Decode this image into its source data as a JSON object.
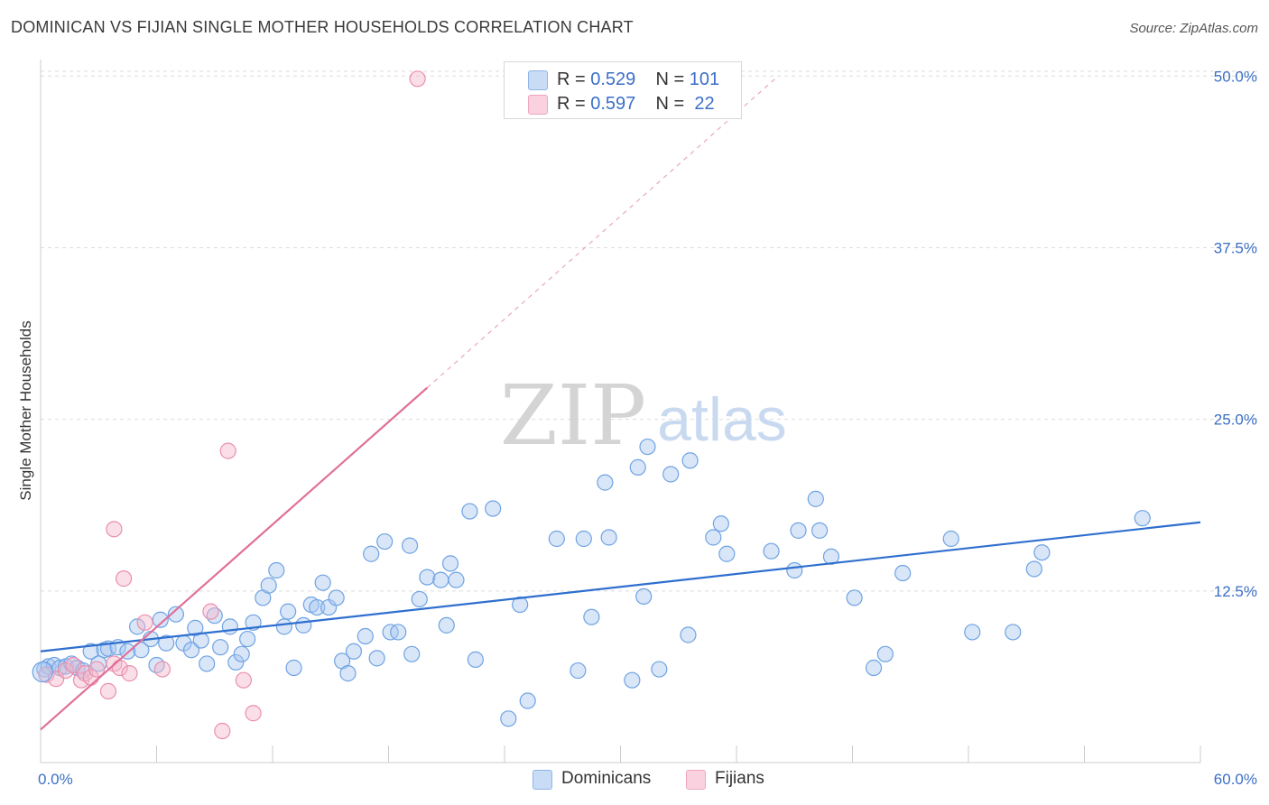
{
  "title": "DOMINICAN VS FIJIAN SINGLE MOTHER HOUSEHOLDS CORRELATION CHART",
  "source": "Source: ZipAtlas.com",
  "watermark": {
    "zip": "ZIP",
    "atlas": "atlas"
  },
  "legend": {
    "rows": [
      {
        "r_label": "R = ",
        "r_value": "0.529",
        "n_label": "N = ",
        "n_value": "101",
        "color": "#a9c8f0"
      },
      {
        "r_label": "R = ",
        "r_value": "0.597",
        "n_label": "N = ",
        "n_value": " 22",
        "color": "#f5b8cc"
      }
    ]
  },
  "bottom_legend": [
    {
      "label": "Dominicans",
      "color": "#a9c8f0"
    },
    {
      "label": "Fijians",
      "color": "#f5b8cc"
    }
  ],
  "chart_data": {
    "type": "scatter",
    "title": "DOMINICAN VS FIJIAN SINGLE MOTHER HOUSEHOLDS CORRELATION CHART",
    "xlabel": "",
    "ylabel": "Single Mother Households",
    "xlim": [
      0,
      60
    ],
    "ylim": [
      0,
      51.2
    ],
    "x_tick_labels": [
      "0.0%",
      "60.0%"
    ],
    "y_ticks": [
      12.5,
      25.0,
      37.5,
      50.0
    ],
    "y_tick_labels": [
      "12.5%",
      "25.0%",
      "37.5%",
      "50.0%"
    ],
    "grid": true,
    "legend_position": "top-center",
    "series": [
      {
        "name": "Dominicans",
        "color": "#6fa3e3",
        "fill": "rgba(169,200,240,0.45)",
        "trend": {
          "x0": 0,
          "y0": 8.1,
          "x1": 60,
          "y1": 17.5,
          "color": "#2f6fcf"
        },
        "points": [
          [
            0.2,
            6.8
          ],
          [
            0.4,
            7.0
          ],
          [
            0.7,
            7.1
          ],
          [
            1.0,
            6.9
          ],
          [
            1.3,
            7.0
          ],
          [
            1.6,
            7.2
          ],
          [
            1.9,
            6.9
          ],
          [
            2.2,
            6.7
          ],
          [
            2.6,
            8.1
          ],
          [
            3.0,
            7.2
          ],
          [
            3.3,
            8.2
          ],
          [
            3.5,
            8.3
          ],
          [
            4.0,
            8.4
          ],
          [
            4.5,
            8.1
          ],
          [
            5.0,
            9.9
          ],
          [
            5.2,
            8.2
          ],
          [
            5.7,
            9.0
          ],
          [
            6.0,
            7.1
          ],
          [
            6.2,
            10.4
          ],
          [
            6.5,
            8.7
          ],
          [
            7.0,
            10.8
          ],
          [
            7.4,
            8.7
          ],
          [
            7.8,
            8.2
          ],
          [
            8.0,
            9.8
          ],
          [
            8.3,
            8.9
          ],
          [
            8.6,
            7.2
          ],
          [
            9.0,
            10.7
          ],
          [
            9.3,
            8.4
          ],
          [
            9.8,
            9.9
          ],
          [
            10.1,
            7.3
          ],
          [
            10.4,
            7.9
          ],
          [
            10.7,
            9.0
          ],
          [
            11.0,
            10.2
          ],
          [
            11.5,
            12.0
          ],
          [
            11.8,
            12.9
          ],
          [
            12.2,
            14.0
          ],
          [
            12.6,
            9.9
          ],
          [
            12.8,
            11.0
          ],
          [
            13.1,
            6.9
          ],
          [
            13.6,
            10.0
          ],
          [
            14.0,
            11.5
          ],
          [
            14.3,
            11.3
          ],
          [
            14.6,
            13.1
          ],
          [
            14.9,
            11.3
          ],
          [
            15.3,
            12.0
          ],
          [
            15.6,
            7.4
          ],
          [
            15.9,
            6.5
          ],
          [
            16.2,
            8.1
          ],
          [
            16.8,
            9.2
          ],
          [
            17.1,
            15.2
          ],
          [
            17.4,
            7.6
          ],
          [
            17.8,
            16.1
          ],
          [
            18.1,
            9.5
          ],
          [
            18.5,
            9.5
          ],
          [
            19.1,
            15.8
          ],
          [
            19.2,
            7.9
          ],
          [
            19.6,
            11.9
          ],
          [
            20.0,
            13.5
          ],
          [
            20.7,
            13.3
          ],
          [
            21.0,
            10.0
          ],
          [
            21.2,
            14.5
          ],
          [
            21.5,
            13.3
          ],
          [
            22.2,
            18.3
          ],
          [
            22.5,
            7.5
          ],
          [
            23.4,
            18.5
          ],
          [
            24.2,
            3.2
          ],
          [
            24.8,
            11.5
          ],
          [
            25.2,
            4.5
          ],
          [
            26.7,
            16.3
          ],
          [
            27.8,
            6.7
          ],
          [
            28.1,
            16.3
          ],
          [
            28.5,
            10.6
          ],
          [
            29.2,
            20.4
          ],
          [
            29.4,
            16.4
          ],
          [
            30.6,
            6.0
          ],
          [
            30.9,
            21.5
          ],
          [
            31.2,
            12.1
          ],
          [
            31.4,
            23.0
          ],
          [
            32.0,
            6.8
          ],
          [
            32.6,
            21.0
          ],
          [
            33.5,
            9.3
          ],
          [
            33.6,
            22.0
          ],
          [
            34.8,
            16.4
          ],
          [
            35.2,
            17.4
          ],
          [
            35.5,
            15.2
          ],
          [
            37.8,
            15.4
          ],
          [
            39.0,
            14.0
          ],
          [
            39.2,
            16.9
          ],
          [
            40.1,
            19.2
          ],
          [
            40.3,
            16.9
          ],
          [
            40.9,
            15.0
          ],
          [
            42.1,
            12.0
          ],
          [
            43.1,
            6.9
          ],
          [
            43.7,
            7.9
          ],
          [
            44.6,
            13.8
          ],
          [
            47.1,
            16.3
          ],
          [
            48.2,
            9.5
          ],
          [
            50.3,
            9.5
          ],
          [
            51.4,
            14.1
          ],
          [
            51.8,
            15.3
          ],
          [
            57.0,
            17.8
          ]
        ]
      },
      {
        "name": "Fijians",
        "color": "#ea8fae",
        "fill": "rgba(245,184,204,0.45)",
        "trend": {
          "x0": 0,
          "y0": 2.4,
          "x1": 20,
          "y1": 27.3,
          "dashed_x1": 38,
          "dashed_y1": 49.8,
          "color": "#e0709a"
        },
        "points": [
          [
            0.3,
            6.4
          ],
          [
            0.8,
            6.1
          ],
          [
            1.3,
            6.7
          ],
          [
            1.7,
            7.1
          ],
          [
            2.1,
            6.0
          ],
          [
            2.3,
            6.5
          ],
          [
            2.6,
            6.2
          ],
          [
            2.9,
            6.8
          ],
          [
            3.5,
            5.2
          ],
          [
            3.8,
            7.2
          ],
          [
            4.1,
            6.9
          ],
          [
            4.3,
            13.4
          ],
          [
            4.6,
            6.5
          ],
          [
            3.8,
            17.0
          ],
          [
            5.4,
            10.2
          ],
          [
            6.3,
            6.8
          ],
          [
            8.8,
            11.0
          ],
          [
            9.4,
            2.3
          ],
          [
            9.7,
            22.7
          ],
          [
            10.5,
            6.0
          ],
          [
            11.0,
            3.6
          ],
          [
            19.5,
            49.8
          ]
        ]
      }
    ]
  }
}
